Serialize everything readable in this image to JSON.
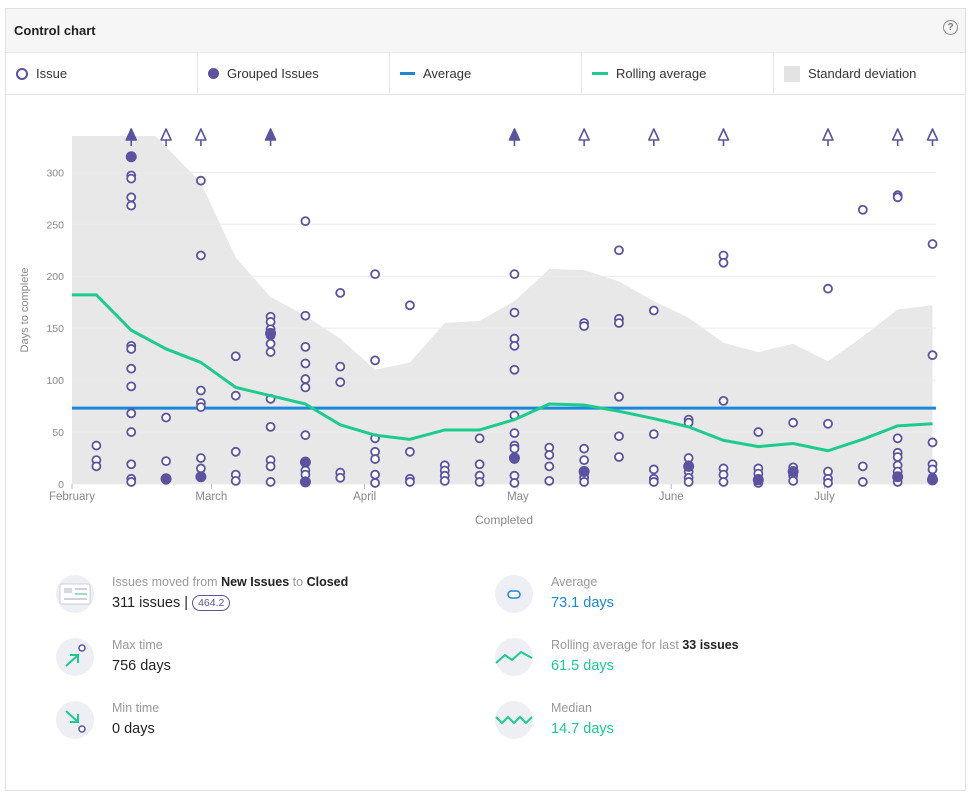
{
  "header": {
    "title": "Control chart",
    "help_icon": "question-circle-icon"
  },
  "legend": {
    "issue": "Issue",
    "grouped": "Grouped Issues",
    "average": "Average",
    "rolling": "Rolling average",
    "stddev": "Standard deviation"
  },
  "colors": {
    "dot": "#5b52a0",
    "average": "#1a88d8",
    "rolling": "#1dcb8f",
    "stddev": "#e8e8e8"
  },
  "chart_data": {
    "type": "scatter",
    "xlabel": "Completed",
    "ylabel": "Days to complete",
    "ylim": [
      0,
      335
    ],
    "yticks": [
      0,
      50,
      100,
      150,
      200,
      250,
      300
    ],
    "xtick_labels": [
      "February",
      "March",
      "April",
      "May",
      "June",
      "July"
    ],
    "xtick_weeks": [
      0,
      4,
      8.4,
      12.8,
      17.2,
      21.6
    ],
    "xlim_weeks": [
      0,
      24.8
    ],
    "grid": true,
    "overflow_weeks": [
      {
        "w": 1.7,
        "filled": true
      },
      {
        "w": 2.7,
        "filled": false
      },
      {
        "w": 3.7,
        "filled": false
      },
      {
        "w": 5.7,
        "filled": true
      },
      {
        "w": 12.7,
        "filled": true
      },
      {
        "w": 14.7,
        "filled": false
      },
      {
        "w": 16.7,
        "filled": false
      },
      {
        "w": 18.7,
        "filled": false
      },
      {
        "w": 21.7,
        "filled": false
      },
      {
        "w": 23.7,
        "filled": false
      },
      {
        "w": 24.7,
        "filled": false
      }
    ],
    "stddev_upper": [
      [
        0,
        335
      ],
      [
        2.4,
        335
      ],
      [
        3.7,
        290
      ],
      [
        4.7,
        218
      ],
      [
        5.7,
        180
      ],
      [
        6.7,
        162
      ],
      [
        7.7,
        140
      ],
      [
        8.7,
        110
      ],
      [
        9.7,
        117
      ],
      [
        10.7,
        155
      ],
      [
        11.7,
        157
      ],
      [
        12.7,
        176
      ],
      [
        13.7,
        207
      ],
      [
        14.7,
        206
      ],
      [
        15.7,
        195
      ],
      [
        16.7,
        176
      ],
      [
        17.7,
        160
      ],
      [
        18.7,
        136
      ],
      [
        19.7,
        127
      ],
      [
        20.7,
        135
      ],
      [
        21.7,
        118
      ],
      [
        22.7,
        142
      ],
      [
        23.7,
        168
      ],
      [
        24.7,
        172
      ]
    ],
    "series": [
      {
        "name": "Rolling average",
        "points": [
          [
            0,
            182
          ],
          [
            0.7,
            182
          ],
          [
            1.7,
            148
          ],
          [
            2.7,
            130
          ],
          [
            3.7,
            117
          ],
          [
            4.7,
            93
          ],
          [
            5.7,
            85
          ],
          [
            6.7,
            77
          ],
          [
            7.7,
            57
          ],
          [
            8.7,
            47
          ],
          [
            9.7,
            43
          ],
          [
            10.7,
            52
          ],
          [
            11.7,
            52
          ],
          [
            12.7,
            62
          ],
          [
            13.7,
            77
          ],
          [
            14.7,
            76
          ],
          [
            15.7,
            70
          ],
          [
            16.7,
            63
          ],
          [
            17.7,
            55
          ],
          [
            18.7,
            42
          ],
          [
            19.7,
            36
          ],
          [
            20.7,
            39
          ],
          [
            21.7,
            32
          ],
          [
            22.7,
            43
          ],
          [
            23.7,
            56
          ],
          [
            24.7,
            58
          ]
        ]
      },
      {
        "name": "Average",
        "value": 73.1
      }
    ],
    "issues": [
      [
        0.7,
        37
      ],
      [
        0.7,
        23
      ],
      [
        0.7,
        17
      ],
      [
        1.7,
        297
      ],
      [
        1.7,
        294
      ],
      [
        1.7,
        276
      ],
      [
        1.7,
        268
      ],
      [
        1.7,
        133
      ],
      [
        1.7,
        130
      ],
      [
        1.7,
        111
      ],
      [
        1.7,
        94
      ],
      [
        1.7,
        68
      ],
      [
        1.7,
        50
      ],
      [
        1.7,
        19
      ],
      [
        1.7,
        5
      ],
      [
        1.7,
        2
      ],
      [
        2.7,
        64
      ],
      [
        2.7,
        22
      ],
      [
        2.7,
        4
      ],
      [
        3.7,
        292
      ],
      [
        3.7,
        220
      ],
      [
        3.7,
        90
      ],
      [
        3.7,
        78
      ],
      [
        3.7,
        74
      ],
      [
        3.7,
        25
      ],
      [
        3.7,
        15
      ],
      [
        4.7,
        123
      ],
      [
        4.7,
        85
      ],
      [
        4.7,
        31
      ],
      [
        4.7,
        9
      ],
      [
        4.7,
        3
      ],
      [
        5.7,
        161
      ],
      [
        5.7,
        156
      ],
      [
        5.7,
        149
      ],
      [
        5.7,
        143
      ],
      [
        5.7,
        135
      ],
      [
        5.7,
        127
      ],
      [
        5.7,
        82
      ],
      [
        5.7,
        55
      ],
      [
        5.7,
        23
      ],
      [
        5.7,
        17
      ],
      [
        5.7,
        2
      ],
      [
        6.7,
        253
      ],
      [
        6.7,
        162
      ],
      [
        6.7,
        132
      ],
      [
        6.7,
        116
      ],
      [
        6.7,
        101
      ],
      [
        6.7,
        93
      ],
      [
        6.7,
        47
      ],
      [
        6.7,
        13
      ],
      [
        6.7,
        9
      ],
      [
        7.7,
        184
      ],
      [
        7.7,
        113
      ],
      [
        7.7,
        98
      ],
      [
        7.7,
        11
      ],
      [
        7.7,
        6
      ],
      [
        8.7,
        202
      ],
      [
        8.7,
        119
      ],
      [
        8.7,
        44
      ],
      [
        8.7,
        31
      ],
      [
        8.7,
        24
      ],
      [
        8.7,
        9
      ],
      [
        8.7,
        1
      ],
      [
        9.7,
        172
      ],
      [
        9.7,
        31
      ],
      [
        9.7,
        5
      ],
      [
        9.7,
        2
      ],
      [
        10.7,
        18
      ],
      [
        10.7,
        13
      ],
      [
        10.7,
        8
      ],
      [
        10.7,
        3
      ],
      [
        11.7,
        44
      ],
      [
        11.7,
        19
      ],
      [
        11.7,
        8
      ],
      [
        11.7,
        2
      ],
      [
        12.7,
        202
      ],
      [
        12.7,
        165
      ],
      [
        12.7,
        140
      ],
      [
        12.7,
        133
      ],
      [
        12.7,
        110
      ],
      [
        12.7,
        66
      ],
      [
        12.7,
        49
      ],
      [
        12.7,
        37
      ],
      [
        12.7,
        34
      ],
      [
        12.7,
        24
      ],
      [
        12.7,
        8
      ],
      [
        12.7,
        1
      ],
      [
        13.7,
        35
      ],
      [
        13.7,
        28
      ],
      [
        13.7,
        17
      ],
      [
        13.7,
        3
      ],
      [
        14.7,
        155
      ],
      [
        14.7,
        152
      ],
      [
        14.7,
        34
      ],
      [
        14.7,
        23
      ],
      [
        14.7,
        10
      ],
      [
        14.7,
        6
      ],
      [
        14.7,
        2
      ],
      [
        15.7,
        225
      ],
      [
        15.7,
        159
      ],
      [
        15.7,
        155
      ],
      [
        15.7,
        84
      ],
      [
        15.7,
        46
      ],
      [
        15.7,
        26
      ],
      [
        16.7,
        167
      ],
      [
        16.7,
        48
      ],
      [
        16.7,
        14
      ],
      [
        16.7,
        5
      ],
      [
        16.7,
        2
      ],
      [
        17.7,
        62
      ],
      [
        17.7,
        59
      ],
      [
        17.7,
        25
      ],
      [
        17.7,
        18
      ],
      [
        17.7,
        12
      ],
      [
        17.7,
        6
      ],
      [
        17.7,
        2
      ],
      [
        18.7,
        220
      ],
      [
        18.7,
        213
      ],
      [
        18.7,
        80
      ],
      [
        18.7,
        15
      ],
      [
        18.7,
        9
      ],
      [
        18.7,
        2
      ],
      [
        19.7,
        50
      ],
      [
        19.7,
        15
      ],
      [
        19.7,
        10
      ],
      [
        19.7,
        5
      ],
      [
        19.7,
        1
      ],
      [
        20.7,
        59
      ],
      [
        20.7,
        16
      ],
      [
        20.7,
        12
      ],
      [
        20.7,
        8
      ],
      [
        20.7,
        3
      ],
      [
        21.7,
        188
      ],
      [
        21.7,
        58
      ],
      [
        21.7,
        12
      ],
      [
        21.7,
        5
      ],
      [
        21.7,
        1
      ],
      [
        22.7,
        264
      ],
      [
        22.7,
        17
      ],
      [
        22.7,
        2
      ],
      [
        23.7,
        278
      ],
      [
        23.7,
        276
      ],
      [
        23.7,
        44
      ],
      [
        23.7,
        30
      ],
      [
        23.7,
        26
      ],
      [
        23.7,
        18
      ],
      [
        23.7,
        12
      ],
      [
        23.7,
        7
      ],
      [
        23.7,
        2
      ],
      [
        24.7,
        231
      ],
      [
        24.7,
        124
      ],
      [
        24.7,
        40
      ],
      [
        24.7,
        19
      ],
      [
        24.7,
        14
      ],
      [
        24.7,
        6
      ],
      [
        24.7,
        4
      ]
    ],
    "grouped": [
      [
        1.7,
        315
      ],
      [
        2.7,
        5
      ],
      [
        3.7,
        7
      ],
      [
        5.7,
        145
      ],
      [
        6.7,
        21
      ],
      [
        6.7,
        2
      ],
      [
        12.7,
        25
      ],
      [
        14.7,
        12
      ],
      [
        17.7,
        17
      ],
      [
        19.7,
        4
      ],
      [
        20.7,
        12
      ],
      [
        23.7,
        7
      ],
      [
        24.7,
        4
      ]
    ]
  },
  "stats": {
    "moved_prefix": "Issues moved from",
    "moved_from": "New Issues",
    "moved_to_word": "to",
    "moved_to": "Closed",
    "issues_count": "311 issues |",
    "issues_badge": "464.2",
    "max_label": "Max time",
    "max_value": "756 days",
    "min_label": "Min time",
    "min_value": "0 days",
    "avg_label": "Average",
    "avg_value": "73.1 days",
    "roll_prefix": "Rolling average for last",
    "roll_bold": "33 issues",
    "roll_value": "61.5 days",
    "median_label": "Median",
    "median_value": "14.7 days"
  }
}
